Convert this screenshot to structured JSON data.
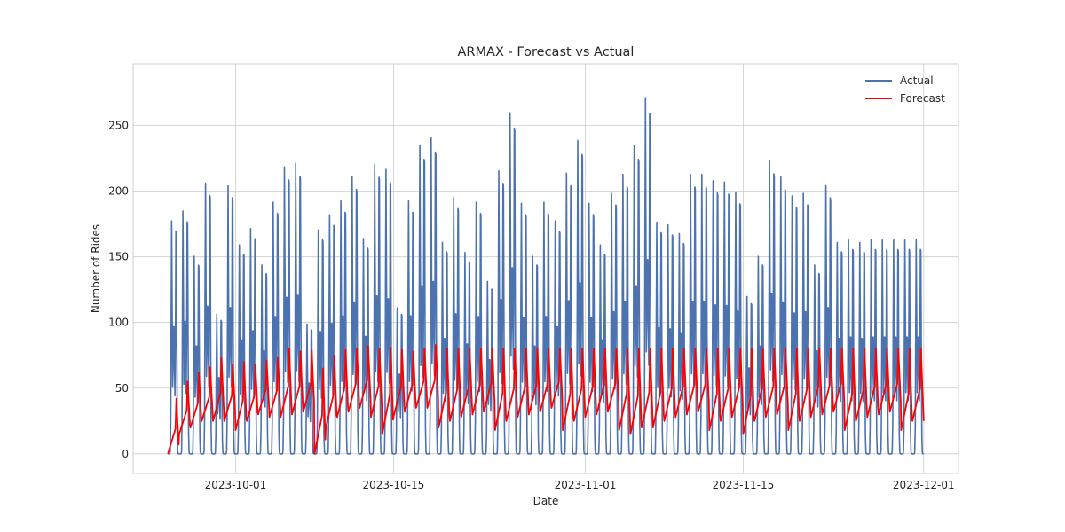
{
  "chart_data": {
    "type": "line",
    "title": "ARMAX - Forecast vs Actual",
    "xlabel": "Date",
    "ylabel": "Number of Rides",
    "x_start": "2023-09-25T00:00",
    "x_end": "2023-12-01T00:00",
    "xlim": [
      "2023-09-21T22:00",
      "2023-12-04T02:00"
    ],
    "ylim": [
      -15,
      297
    ],
    "x_ticks": [
      {
        "date": "2023-10-01",
        "label": "2023-10-01"
      },
      {
        "date": "2023-10-15",
        "label": "2023-10-15"
      },
      {
        "date": "2023-11-01",
        "label": "2023-11-01"
      },
      {
        "date": "2023-11-15",
        "label": "2023-11-15"
      },
      {
        "date": "2023-12-01",
        "label": "2023-12-01"
      }
    ],
    "y_ticks": [
      0,
      50,
      100,
      150,
      200,
      250
    ],
    "grid": true,
    "legend_position": "top-right",
    "sampling": "daily min and max (reconstructed hourly)",
    "series": [
      {
        "name": "Actual",
        "color": "#4c72b0",
        "daily_max": [
          185,
          193,
          157,
          215,
          111,
          213,
          166,
          179,
          150,
          200,
          228,
          231,
          103,
          178,
          190,
          201,
          220,
          171,
          230,
          226,
          116,
          201,
          245,
          251,
          168,
          204,
          160,
          200,
          137,
          225,
          271,
          199,
          157,
          200,
          185,
          223,
          249,
          199,
          166,
          207,
          222,
          245,
          283,
          184,
          182,
          175,
          222,
          222,
          217,
          216,
          208,
          125,
          157,
          233,
          220,
          205,
          207,
          150,
          213,
          168,
          170,
          168,
          170,
          170,
          170,
          170,
          170
        ],
        "daily_min": [
          0,
          0,
          0,
          0,
          0,
          0,
          0,
          0,
          0,
          0,
          0,
          0,
          0,
          0,
          0,
          0,
          0,
          0,
          0,
          0,
          0,
          0,
          0,
          0,
          0,
          0,
          0,
          0,
          0,
          0,
          0,
          0,
          0,
          0,
          0,
          0,
          0,
          0,
          0,
          0,
          0,
          0,
          0,
          0,
          0,
          0,
          0,
          0,
          0,
          0,
          0,
          0,
          0,
          0,
          0,
          0,
          0,
          0,
          0,
          0,
          0,
          0,
          0,
          0,
          0,
          0,
          0
        ]
      },
      {
        "name": "Forecast",
        "color": "#ff0000",
        "daily_max": [
          42,
          55,
          62,
          66,
          73,
          68,
          70,
          68,
          71,
          73,
          80,
          78,
          79,
          65,
          75,
          79,
          80,
          82,
          80,
          81,
          79,
          78,
          80,
          83,
          80,
          80,
          80,
          80,
          80,
          80,
          80,
          80,
          80,
          80,
          80,
          80,
          80,
          80,
          80,
          80,
          80,
          80,
          80,
          80,
          80,
          80,
          80,
          80,
          80,
          80,
          80,
          80,
          80,
          80,
          80,
          80,
          80,
          80,
          80,
          80,
          80,
          80,
          80,
          80,
          80,
          80,
          80
        ],
        "daily_min": [
          0,
          15,
          20,
          25,
          25,
          25,
          18,
          25,
          30,
          28,
          28,
          30,
          32,
          0,
          20,
          28,
          32,
          35,
          28,
          15,
          28,
          32,
          35,
          35,
          20,
          25,
          28,
          30,
          32,
          18,
          25,
          28,
          30,
          32,
          35,
          18,
          25,
          28,
          30,
          32,
          18,
          15,
          20,
          20,
          25,
          28,
          30,
          32,
          18,
          25,
          28,
          15,
          25,
          28,
          30,
          18,
          25,
          28,
          30,
          32,
          18,
          25,
          28,
          30,
          32,
          18,
          25
        ]
      }
    ]
  }
}
